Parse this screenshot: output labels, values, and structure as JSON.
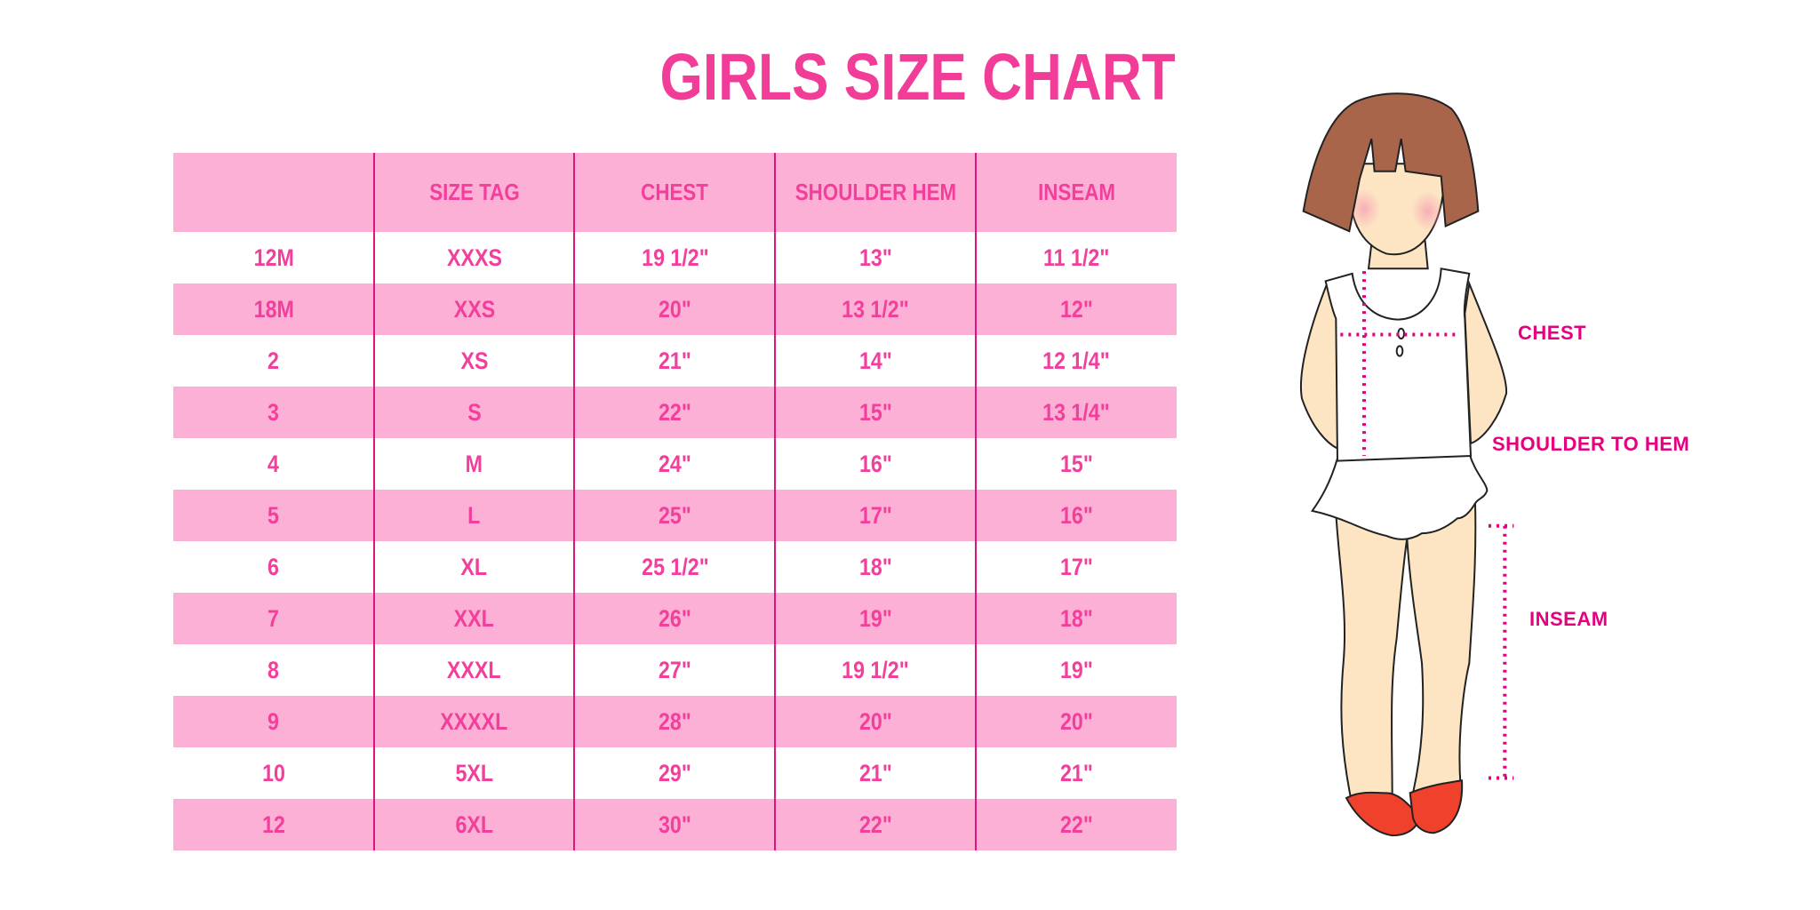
{
  "title": "GIRLS SIZE CHART",
  "colors": {
    "accent": "#f23f9c",
    "row_pink": "#fdb0d5",
    "divider": "#e0147f",
    "label": "#e6007e",
    "hair": "#a8654a",
    "skin": "#fde5c3",
    "shoes": "#f0412c"
  },
  "table": {
    "headers": [
      "",
      "SIZE TAG",
      "CHEST",
      "SHOULDER HEM",
      "INSEAM"
    ],
    "rows": [
      [
        "12M",
        "XXXS",
        "19 1/2\"",
        "13\"",
        "11 1/2\""
      ],
      [
        "18M",
        "XXS",
        "20\"",
        "13 1/2\"",
        "12\""
      ],
      [
        "2",
        "XS",
        "21\"",
        "14\"",
        "12 1/4\""
      ],
      [
        "3",
        "S",
        "22\"",
        "15\"",
        "13 1/4\""
      ],
      [
        "4",
        "M",
        "24\"",
        "16\"",
        "15\""
      ],
      [
        "5",
        "L",
        "25\"",
        "17\"",
        "16\""
      ],
      [
        "6",
        "XL",
        "25 1/2\"",
        "18\"",
        "17\""
      ],
      [
        "7",
        "XXL",
        "26\"",
        "19\"",
        "18\""
      ],
      [
        "8",
        "XXXL",
        "27\"",
        "19 1/2\"",
        "19\""
      ],
      [
        "9",
        "XXXXL",
        "28\"",
        "20\"",
        "20\""
      ],
      [
        "10",
        "5XL",
        "29\"",
        "21\"",
        "21\""
      ],
      [
        "12",
        "6XL",
        "30\"",
        "22\"",
        "22\""
      ]
    ]
  },
  "figure": {
    "labels": {
      "chest": "CHEST",
      "shoulder_to_hem": "SHOULDER TO HEM",
      "inseam": "INSEAM"
    }
  }
}
